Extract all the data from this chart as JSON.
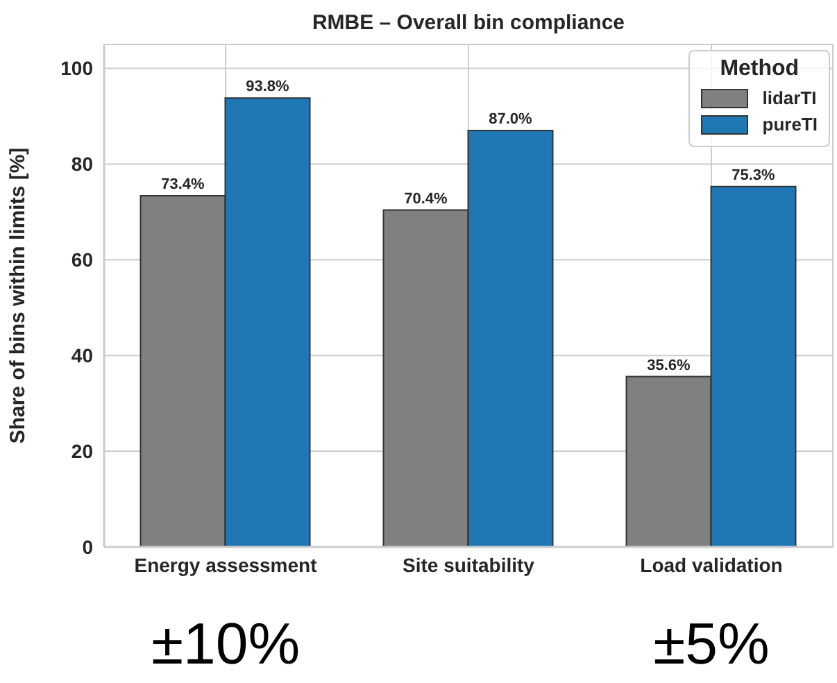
{
  "chart_data": {
    "type": "bar",
    "title": "RMBE – Overall bin compliance",
    "ylabel": "Share of bins within limits [%]",
    "legend_title": "Method",
    "categories": [
      "Energy assessment",
      "Site suitability",
      "Load validation"
    ],
    "series": [
      {
        "name": "lidarTI",
        "color": "#808080",
        "values": [
          73.4,
          70.4,
          35.6
        ],
        "value_labels": [
          "73.4%",
          "70.4%",
          "35.6%"
        ]
      },
      {
        "name": "pureTI",
        "color": "#1f77b4",
        "values": [
          93.8,
          87.0,
          75.3
        ],
        "value_labels": [
          "93.8%",
          "87.0%",
          "75.3%"
        ]
      }
    ],
    "ylim": [
      0,
      105
    ],
    "yticks": [
      0,
      20,
      40,
      60,
      80,
      100
    ],
    "grid": true,
    "legend": "top right",
    "annotations": [
      "±10%",
      "±5%"
    ]
  }
}
